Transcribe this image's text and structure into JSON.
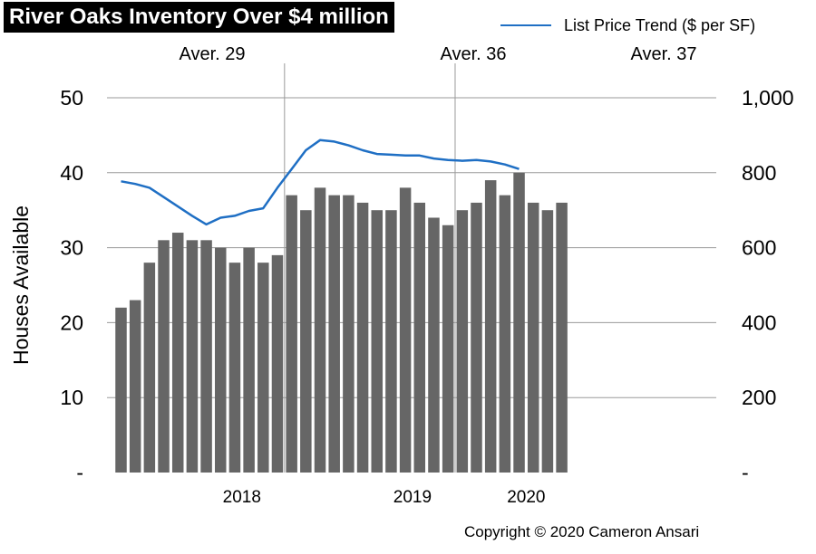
{
  "title": "River Oaks Inventory Over $4 million",
  "copyright": "Copyright © 2020 Cameron Ansari",
  "colors": {
    "bar": "#666666",
    "line": "#1f6fc4",
    "grid": "#9a9a9a",
    "title_bg": "#000000"
  },
  "chart_data": {
    "type": "bar+line",
    "title": "River Oaks Inventory Over $4 million",
    "ylabel": "Houses Available",
    "ylim": [
      0,
      50
    ],
    "yticks": [
      "-",
      "10",
      "20",
      "30",
      "40",
      "50"
    ],
    "y2lim": [
      0,
      1000
    ],
    "y2ticks": [
      "-",
      "200",
      "400",
      "600",
      "800",
      "1,000"
    ],
    "x_labels": [
      {
        "label": "2018",
        "center_index": 8.5
      },
      {
        "label": "2019",
        "center_index": 20.5
      },
      {
        "label": "2020",
        "center_index": 28.5
      }
    ],
    "period_dividers": [
      12,
      24
    ],
    "period_annotations": [
      "Aver. 29",
      "Aver. 36",
      "Aver. 37"
    ],
    "series": [
      {
        "name": "Houses Available",
        "type": "bar",
        "axis": "left",
        "values": [
          22,
          23,
          28,
          31,
          32,
          31,
          31,
          30,
          28,
          30,
          28,
          29,
          37,
          35,
          38,
          37,
          37,
          36,
          35,
          35,
          38,
          36,
          34,
          33,
          35,
          36,
          39,
          37,
          40,
          36,
          35,
          36
        ]
      },
      {
        "name": "List Price Trend ($ per SF)",
        "type": "line",
        "axis": "right",
        "values": [
          777,
          770,
          760,
          735,
          710,
          685,
          662,
          680,
          685,
          698,
          705,
          760,
          810,
          860,
          887,
          883,
          873,
          860,
          850,
          848,
          846,
          846,
          838,
          834,
          832,
          834,
          830,
          822,
          810
        ]
      }
    ]
  }
}
